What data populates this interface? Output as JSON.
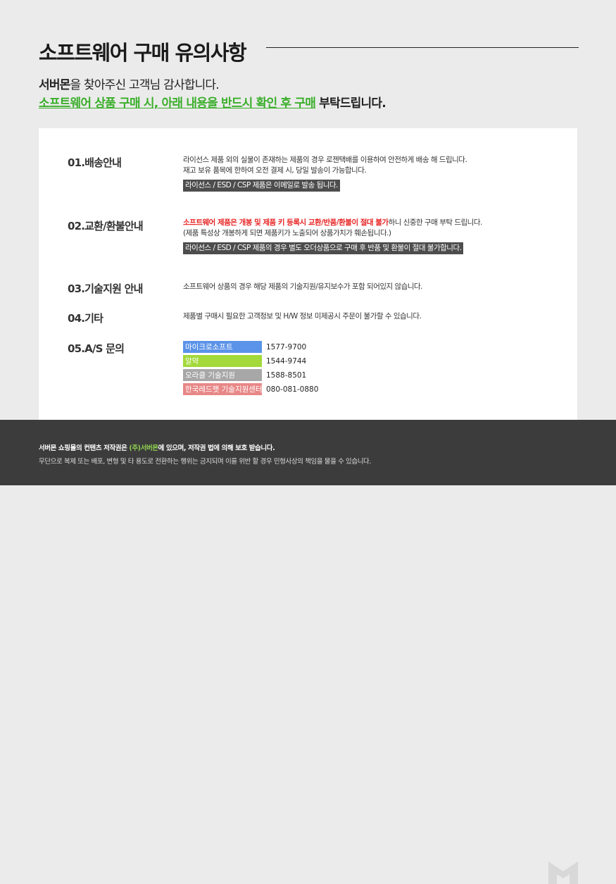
{
  "header": {
    "title": "소프트웨어 구매 유의사항",
    "greeting_brand": "서버몬",
    "greeting_rest": "을 찾아주신 고객님 감사합니다.",
    "notice_highlight": "소프트웨어 상품 구매 시, 아래 내용을 반드시 확인 후 구매",
    "notice_rest": " 부탁드립니다."
  },
  "sections": [
    {
      "label": "01.배송안내",
      "lines": [
        "라이선스 제품 외의 실물이 존재하는 제품의 경우 로젠택배를 이용하여 안전하게 배송 해 드립니다.",
        "재고 보유 품목에 한하여 오전 결제 시, 당일 발송이 가능합니다."
      ],
      "tag": "라이선스 / ESD / CSP 제품은 이메일로 발송 됩니다."
    },
    {
      "label": "02.교환/환불안내",
      "warning": "소프트웨어 제품은 개봉 및 제품 키 등록시 교환/반품/환불이 절대 불가",
      "warning_rest": "하니 신중한 구매 부탁 드립니다.",
      "lines": [
        "(제품 특성상 개봉하게 되면 제품키가 노출되어 상품가치가 훼손됩니다.)"
      ],
      "tag": "라이선스 / ESD / CSP 제품의 경우 별도 오더상품으로 구매 후 반품 및 환불이 절대 불가합니다."
    },
    {
      "label": "03.기술지원 안내",
      "lines": [
        "소프트웨어 상품의 경우 해당 제품의 기술지원/유지보수가 포함 되어있지 않습니다."
      ]
    },
    {
      "label": "04.기타",
      "lines": [
        "제품별 구매시 필요한 고객정보 및 H/W 정보 미제공시 주문이 불가할 수 있습니다."
      ]
    },
    {
      "label": "05.A/S 문의"
    }
  ],
  "as_contacts": [
    {
      "name": "마이크로소프트",
      "phone": "1577-9700",
      "color": "#5b93e8"
    },
    {
      "name": "알약",
      "phone": "1544-9744",
      "color": "#a3d93a"
    },
    {
      "name": "오라클 기술지원",
      "phone": "1588-8501",
      "color": "#a7a7a7"
    },
    {
      "name": "한국레드햇 기술지원센터",
      "phone": "080-081-0880",
      "color": "#e88787"
    }
  ],
  "footer": {
    "line1_a": "서버몬 쇼핑몰의 컨텐츠 저작권은 ",
    "line1_brand": "(주)서버몬",
    "line1_b": "에 있으며, 저작권 법에 의해 보호 받습니다.",
    "line2": "무단으로 복제 또는 배포, 변형 및 타 용도로 전환하는 행위는 금지되며 이를 위반 할 경우 민형사상의 책임을 물을 수 있습니다."
  }
}
